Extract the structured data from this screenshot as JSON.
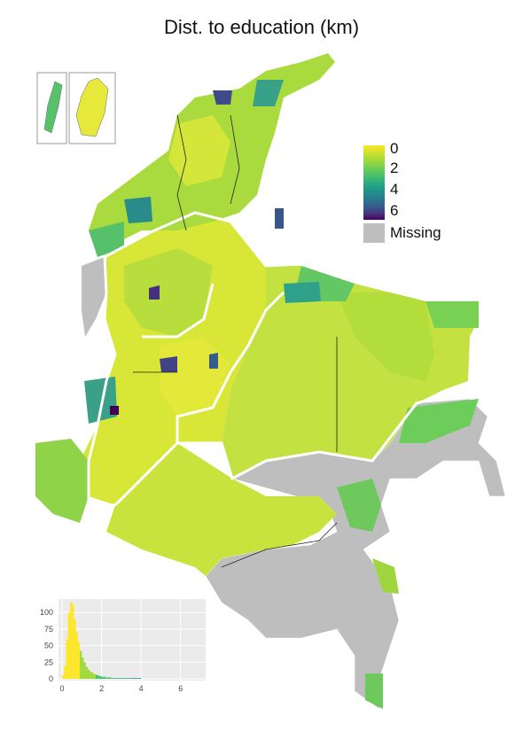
{
  "title": "Dist. to education (km)",
  "legend": {
    "ticks": [
      "0",
      "2",
      "4",
      "6"
    ],
    "missing_label": "Missing"
  },
  "colors": {
    "missing": "#bebebe",
    "scale": [
      "#fde725",
      "#a0da39",
      "#4ac16d",
      "#1fa187",
      "#277f8e",
      "#365c8d",
      "#46327e",
      "#440154"
    ],
    "boundary": "#ffffff"
  },
  "histogram": {
    "x_ticks": [
      "0",
      "2",
      "4",
      "6"
    ],
    "y_ticks": [
      "0",
      "25",
      "50",
      "75",
      "100"
    ]
  },
  "chart_data": {
    "type": "bar",
    "title": "",
    "xlabel": "",
    "ylabel": "",
    "xlim": [
      0,
      7
    ],
    "ylim": [
      0,
      115
    ],
    "bins": [
      0.05,
      0.15,
      0.25,
      0.35,
      0.45,
      0.55,
      0.65,
      0.75,
      0.85,
      0.95,
      1.05,
      1.15,
      1.25,
      1.35,
      1.45,
      1.55,
      1.65,
      1.75,
      1.85,
      1.95,
      2.05,
      2.15,
      2.25,
      2.35,
      2.45,
      2.55,
      2.65,
      2.75,
      2.85,
      2.95,
      3.05,
      3.15,
      3.25,
      3.35,
      3.45,
      3.55,
      3.65,
      3.75,
      3.85,
      3.95
    ],
    "counts": [
      5,
      20,
      60,
      100,
      115,
      112,
      90,
      70,
      55,
      42,
      32,
      25,
      18,
      14,
      11,
      9,
      7,
      6,
      5,
      4,
      3,
      3,
      2,
      2,
      2,
      1,
      1,
      1,
      1,
      1,
      1,
      1,
      1,
      1,
      1,
      1,
      1,
      1,
      1,
      1
    ],
    "grid": true
  }
}
